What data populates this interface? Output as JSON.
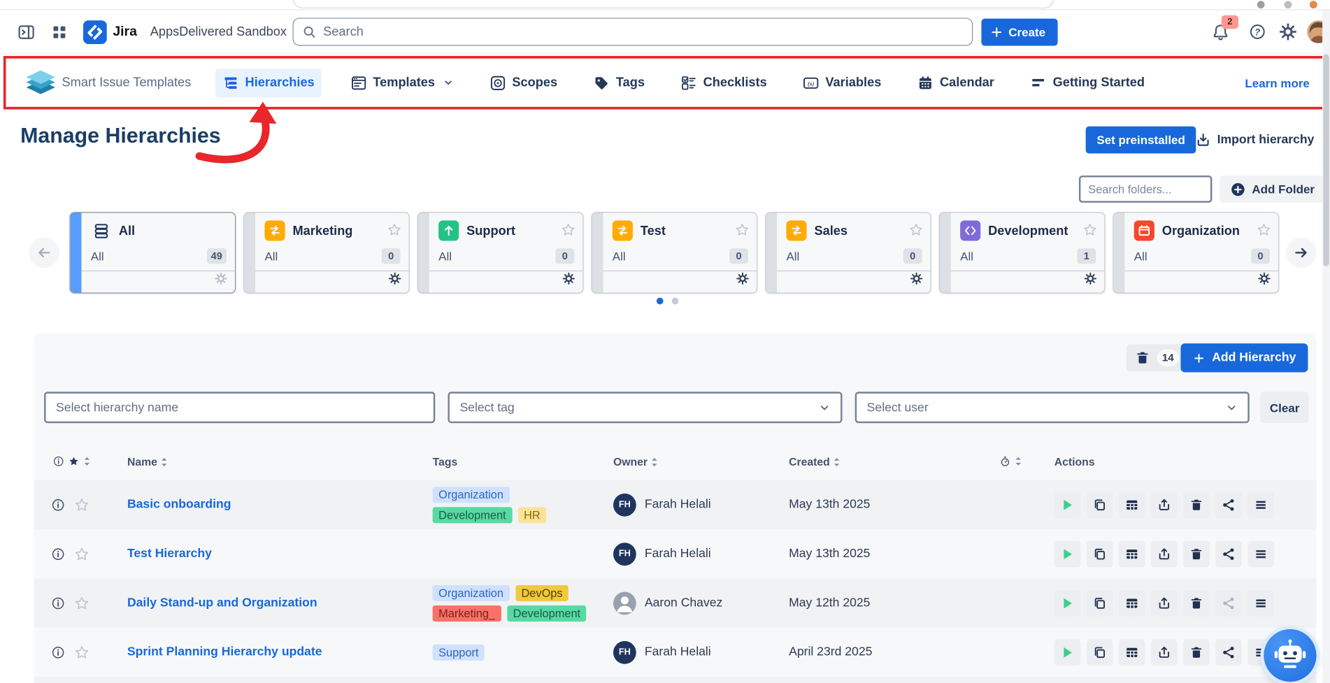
{
  "topbar": {
    "product": "Jira",
    "site": "AppsDelivered Sandbox",
    "search_placeholder": "Search",
    "create_label": "Create",
    "notification_count": "2"
  },
  "plugin_nav": {
    "app_name": "Smart Issue Templates",
    "items": [
      {
        "label": "Hierarchies",
        "active": true
      },
      {
        "label": "Templates",
        "dropdown": true
      },
      {
        "label": "Scopes"
      },
      {
        "label": "Tags"
      },
      {
        "label": "Checklists"
      },
      {
        "label": "Variables"
      },
      {
        "label": "Calendar"
      },
      {
        "label": "Getting Started"
      }
    ],
    "learn_more": "Learn more"
  },
  "page": {
    "title": "Manage Hierarchies",
    "set_preinstalled_label": "Set preinstalled",
    "import_hierarchy_label": "Import hierarchy",
    "search_folders_placeholder": "Search folders...",
    "add_folder_label": "Add Folder"
  },
  "folders": [
    {
      "name": "All",
      "sub": "All",
      "count": "49",
      "icon": "stack",
      "selected": true
    },
    {
      "name": "Marketing",
      "sub": "All",
      "count": "0",
      "icon": "swap-arrows",
      "color": "#FFAB00"
    },
    {
      "name": "Support",
      "sub": "All",
      "count": "0",
      "icon": "arrow-up",
      "color": "#23C287"
    },
    {
      "name": "Test",
      "sub": "All",
      "count": "0",
      "icon": "swap-arrows",
      "color": "#FFAB00"
    },
    {
      "name": "Sales",
      "sub": "All",
      "count": "0",
      "icon": "swap-arrows",
      "color": "#FFAB00"
    },
    {
      "name": "Development",
      "sub": "All",
      "count": "1",
      "icon": "code-brackets",
      "color": "#7E6BD9"
    },
    {
      "name": "Organization",
      "sub": "All",
      "count": "0",
      "icon": "calendar",
      "color": "#F5472E"
    }
  ],
  "toolbar": {
    "selected_count": "14",
    "add_hierarchy_label": "Add Hierarchy"
  },
  "filters": {
    "name_placeholder": "Select hierarchy name",
    "tag_placeholder": "Select tag",
    "user_placeholder": "Select user",
    "clear_label": "Clear"
  },
  "table": {
    "headers": {
      "name": "Name",
      "tags": "Tags",
      "owner": "Owner",
      "created": "Created",
      "actions": "Actions"
    },
    "rows": [
      {
        "name": "Basic onboarding",
        "tags": [
          {
            "label": "Organization",
            "type": "blue"
          },
          {
            "label": "Development",
            "type": "green"
          },
          {
            "label": "HR",
            "type": "yellow"
          }
        ],
        "owner": "Farah Helali",
        "owner_initials": "FH",
        "created": "May 13th 2025"
      },
      {
        "name": "Test Hierarchy",
        "tags": [],
        "owner": "Farah Helali",
        "owner_initials": "FH",
        "created": "May 13th 2025"
      },
      {
        "name": "Daily Stand-up and Organization",
        "tags": [
          {
            "label": "Organization",
            "type": "blue"
          },
          {
            "label": "DevOps",
            "type": "amber"
          },
          {
            "label": "Marketing_",
            "type": "red"
          },
          {
            "label": "Development",
            "type": "green"
          }
        ],
        "owner": "Aaron Chavez",
        "owner_initials": "",
        "created": "May 12th 2025",
        "share_disabled": true
      },
      {
        "name": "Sprint Planning Hierarchy update",
        "tags": [
          {
            "label": "Support",
            "type": "blue"
          }
        ],
        "owner": "Farah Helali",
        "owner_initials": "FH",
        "created": "April 23rd 2025"
      }
    ]
  },
  "colors": {
    "accent_blue": "#1868DB",
    "annotation_red": "#E8262B",
    "active_tab_bg": "#E9F2FF",
    "selected_card_bar": "#579DFF",
    "notification_badge_bg": "#FD9891",
    "tag_blue_bg": "#CFE1FD",
    "tag_green_bg": "#57D9A3",
    "tag_yellow_bg": "#F8E399",
    "tag_amber_bg": "#F0C93F",
    "tag_red_bg": "#F87168",
    "play_green": "#3DCF8E"
  }
}
